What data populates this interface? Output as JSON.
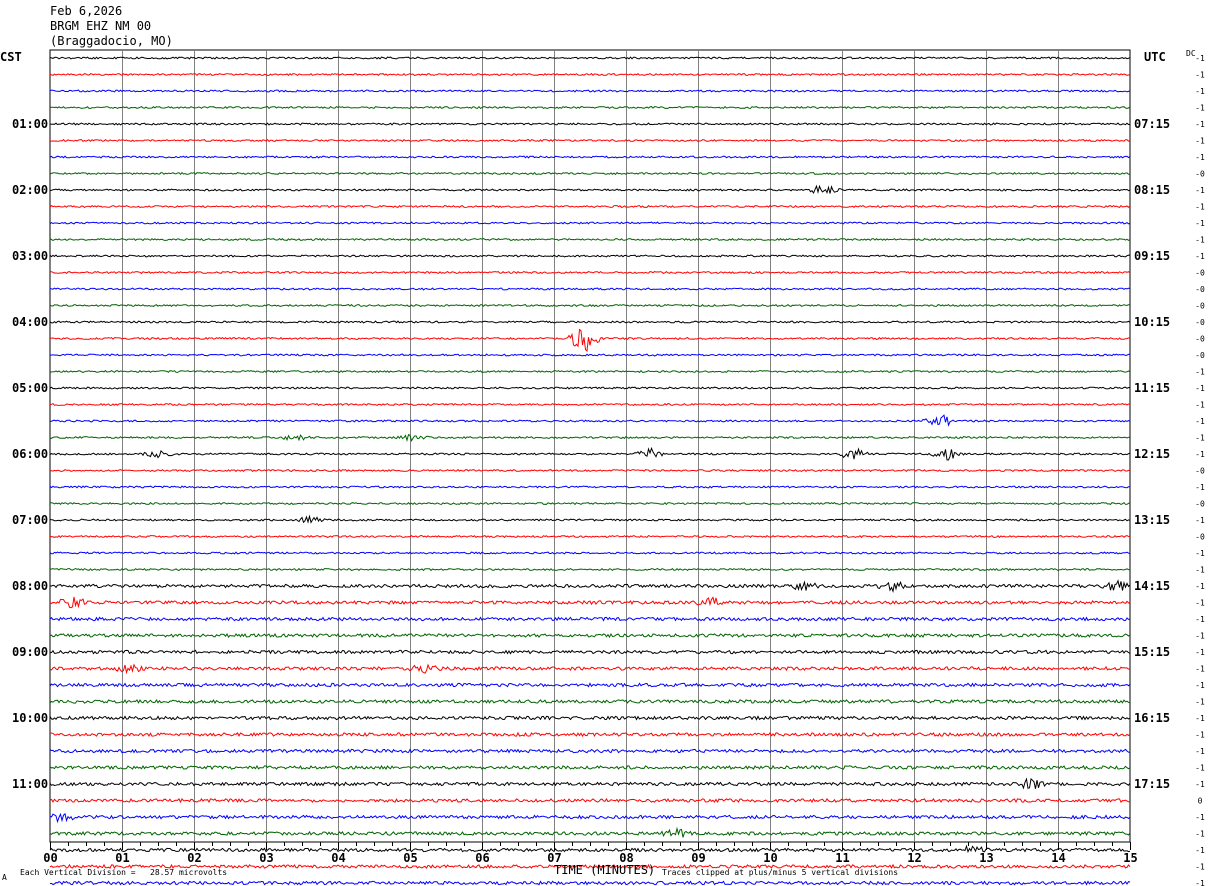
{
  "header": {
    "date": "Feb 6,2026",
    "station": "BRGM EHZ NM 00",
    "location": "(Braggadocio, MO)"
  },
  "left_tz": "CST",
  "right_tz": "UTC",
  "dc_label": "DC",
  "footer": {
    "left": "Each Vertical Division =   28.57 microvolts",
    "center": "TIME (MINUTES)",
    "right": "Traces clipped at plus/minus 5 vertical divisions",
    "corner_mark": "A"
  },
  "chart_data": {
    "type": "line",
    "title": "",
    "xlabel": "TIME (MINUTES)",
    "xlim": [
      0,
      15
    ],
    "x_ticks": [
      "00",
      "01",
      "02",
      "03",
      "04",
      "05",
      "06",
      "07",
      "08",
      "09",
      "10",
      "11",
      "12",
      "13",
      "14",
      "15"
    ],
    "trace_colors": [
      "#000000",
      "#ff0000",
      "#0000ff",
      "#006400"
    ],
    "left_hour_labels": [
      "01:00",
      "02:00",
      "03:00",
      "04:00",
      "05:00",
      "06:00",
      "07:00",
      "08:00",
      "09:00",
      "10:00",
      "11:00"
    ],
    "right_hour_labels": [
      "07:15",
      "08:15",
      "09:15",
      "10:15",
      "11:15",
      "12:15",
      "13:15",
      "14:15",
      "15:15",
      "16:15",
      "17:15"
    ],
    "dc_offsets": [
      "-1",
      "-1",
      "-1",
      "-1",
      "-1",
      "-1",
      "-1",
      "-0",
      "-1",
      "-1",
      "-1",
      "-1",
      "-1",
      "-0",
      "-0",
      "-0",
      "-0",
      "-0",
      "-0",
      "-1",
      "-1",
      "-1",
      "-1",
      "-1",
      "-1",
      "-0",
      "-1",
      "-0",
      "-1",
      "-0",
      "-1",
      "-1",
      "-1",
      "-1",
      "-1",
      "-1",
      "-1",
      "-1",
      "-1",
      "-1",
      "-1",
      "-1",
      "-1",
      "-1",
      "-1",
      "0",
      "-1",
      "-1",
      "-1",
      "-1",
      "-1",
      "-1"
    ],
    "events": [
      {
        "trace": 8,
        "minute": 10.75,
        "amp": 5
      },
      {
        "trace": 17,
        "minute": 7.42,
        "amp": 14
      },
      {
        "trace": 22,
        "minute": 12.35,
        "amp": 7
      },
      {
        "trace": 23,
        "minute": 3.4,
        "amp": 3
      },
      {
        "trace": 23,
        "minute": 5.05,
        "amp": 3
      },
      {
        "trace": 24,
        "minute": 8.35,
        "amp": 5
      },
      {
        "trace": 24,
        "minute": 11.15,
        "amp": 6
      },
      {
        "trace": 24,
        "minute": 12.45,
        "amp": 6
      },
      {
        "trace": 24,
        "minute": 1.5,
        "amp": 3
      },
      {
        "trace": 28,
        "minute": 3.6,
        "amp": 3
      },
      {
        "trace": 32,
        "minute": 14.8,
        "amp": 5
      },
      {
        "trace": 32,
        "minute": 10.45,
        "amp": 4
      },
      {
        "trace": 32,
        "minute": 11.7,
        "amp": 4
      },
      {
        "trace": 33,
        "minute": 0.3,
        "amp": 5
      },
      {
        "trace": 33,
        "minute": 9.2,
        "amp": 4
      },
      {
        "trace": 37,
        "minute": 5.2,
        "amp": 4
      },
      {
        "trace": 37,
        "minute": 1.1,
        "amp": 3
      },
      {
        "trace": 44,
        "minute": 13.6,
        "amp": 5
      },
      {
        "trace": 46,
        "minute": 0.15,
        "amp": 4
      },
      {
        "trace": 47,
        "minute": 8.7,
        "amp": 4
      },
      {
        "trace": 48,
        "minute": 12.8,
        "amp": 4
      }
    ]
  }
}
